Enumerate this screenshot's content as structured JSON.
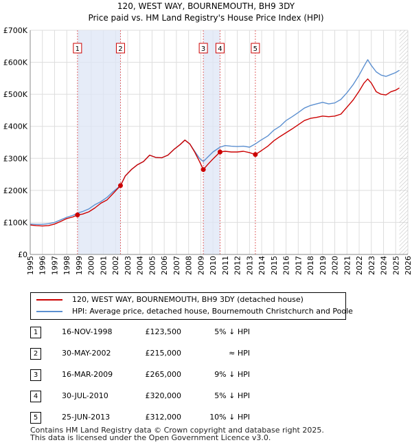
{
  "chart_data": {
    "type": "line",
    "title": "120, WEST WAY, BOURNEMOUTH, BH9 3DY",
    "subtitle": "Price paid vs. HM Land Registry's House Price Index (HPI)",
    "xlabel": "",
    "ylabel": "",
    "xlim": [
      1995,
      2026
    ],
    "ylim": [
      0,
      700000
    ],
    "x_ticks": [
      "1995",
      "1996",
      "1997",
      "1998",
      "1999",
      "2000",
      "2001",
      "2002",
      "2003",
      "2004",
      "2005",
      "2006",
      "2007",
      "2008",
      "2009",
      "2010",
      "2011",
      "2012",
      "2013",
      "2014",
      "2015",
      "2016",
      "2017",
      "2018",
      "2019",
      "2020",
      "2021",
      "2022",
      "2023",
      "2024",
      "2025",
      "2026"
    ],
    "y_ticks": [
      {
        "value": 0,
        "label": "£0"
      },
      {
        "value": 100000,
        "label": "£100K"
      },
      {
        "value": 200000,
        "label": "£200K"
      },
      {
        "value": 300000,
        "label": "£300K"
      },
      {
        "value": 400000,
        "label": "£400K"
      },
      {
        "value": 500000,
        "label": "£500K"
      },
      {
        "value": 600000,
        "label": "£600K"
      },
      {
        "value": 700000,
        "label": "£700K"
      }
    ],
    "grid": true,
    "series": [
      {
        "name": "120, WEST WAY, BOURNEMOUTH, BH9 3DY (detached house)",
        "color": "#cc0000",
        "points": [
          [
            1995,
            92000
          ],
          [
            1995.5,
            90000
          ],
          [
            1996,
            89000
          ],
          [
            1996.5,
            90000
          ],
          [
            1997,
            95000
          ],
          [
            1997.5,
            103000
          ],
          [
            1998,
            112000
          ],
          [
            1998.5,
            117000
          ],
          [
            1998.88,
            123500
          ],
          [
            1999.3,
            126000
          ],
          [
            1999.8,
            133000
          ],
          [
            2000.3,
            145000
          ],
          [
            2000.8,
            160000
          ],
          [
            2001.3,
            170000
          ],
          [
            2001.8,
            190000
          ],
          [
            2002.41,
            215000
          ],
          [
            2002.8,
            245000
          ],
          [
            2003.3,
            265000
          ],
          [
            2003.8,
            280000
          ],
          [
            2004.3,
            290000
          ],
          [
            2004.8,
            310000
          ],
          [
            2005.3,
            303000
          ],
          [
            2005.8,
            302000
          ],
          [
            2006.3,
            310000
          ],
          [
            2006.8,
            328000
          ],
          [
            2007.3,
            343000
          ],
          [
            2007.7,
            357000
          ],
          [
            2008.1,
            345000
          ],
          [
            2008.5,
            320000
          ],
          [
            2008.9,
            290000
          ],
          [
            2009.21,
            265000
          ],
          [
            2009.6,
            282000
          ],
          [
            2010.0,
            298000
          ],
          [
            2010.58,
            320000
          ],
          [
            2011,
            322000
          ],
          [
            2011.5,
            320000
          ],
          [
            2012,
            320000
          ],
          [
            2012.5,
            322000
          ],
          [
            2013,
            318000
          ],
          [
            2013.48,
            312000
          ],
          [
            2013.9,
            322000
          ],
          [
            2014.5,
            338000
          ],
          [
            2015,
            355000
          ],
          [
            2015.5,
            368000
          ],
          [
            2016,
            380000
          ],
          [
            2016.5,
            392000
          ],
          [
            2017,
            405000
          ],
          [
            2017.5,
            418000
          ],
          [
            2018,
            425000
          ],
          [
            2018.5,
            428000
          ],
          [
            2019,
            432000
          ],
          [
            2019.5,
            430000
          ],
          [
            2020,
            432000
          ],
          [
            2020.5,
            438000
          ],
          [
            2021,
            460000
          ],
          [
            2021.5,
            482000
          ],
          [
            2022,
            510000
          ],
          [
            2022.4,
            535000
          ],
          [
            2022.7,
            548000
          ],
          [
            2023,
            535000
          ],
          [
            2023.4,
            508000
          ],
          [
            2023.8,
            500000
          ],
          [
            2024.2,
            498000
          ],
          [
            2024.6,
            508000
          ],
          [
            2025,
            513000
          ],
          [
            2025.3,
            520000
          ]
        ]
      },
      {
        "name": "HPI: Average price, detached house, Bournemouth Christchurch and Poole",
        "color": "#5b8fd0",
        "points": [
          [
            1995,
            95000
          ],
          [
            1995.5,
            94000
          ],
          [
            1996,
            94000
          ],
          [
            1996.5,
            96000
          ],
          [
            1997,
            100000
          ],
          [
            1997.5,
            108000
          ],
          [
            1998,
            116000
          ],
          [
            1998.5,
            122000
          ],
          [
            1998.88,
            129000
          ],
          [
            1999.3,
            134000
          ],
          [
            1999.8,
            142000
          ],
          [
            2000.3,
            155000
          ],
          [
            2000.8,
            165000
          ],
          [
            2001.3,
            178000
          ],
          [
            2001.8,
            196000
          ],
          [
            2002.41,
            215000
          ],
          [
            2002.8,
            245000
          ],
          [
            2003.3,
            265000
          ],
          [
            2003.8,
            280000
          ],
          [
            2004.3,
            290000
          ],
          [
            2004.8,
            310000
          ],
          [
            2005.3,
            303000
          ],
          [
            2005.8,
            302000
          ],
          [
            2006.3,
            310000
          ],
          [
            2006.8,
            328000
          ],
          [
            2007.3,
            343000
          ],
          [
            2007.7,
            357000
          ],
          [
            2008.1,
            345000
          ],
          [
            2008.5,
            322000
          ],
          [
            2008.9,
            300000
          ],
          [
            2009.21,
            290000
          ],
          [
            2009.6,
            305000
          ],
          [
            2010.0,
            320000
          ],
          [
            2010.58,
            335000
          ],
          [
            2011,
            340000
          ],
          [
            2011.5,
            338000
          ],
          [
            2012,
            337000
          ],
          [
            2012.5,
            338000
          ],
          [
            2013,
            335000
          ],
          [
            2013.48,
            345000
          ],
          [
            2013.9,
            356000
          ],
          [
            2014.5,
            370000
          ],
          [
            2015,
            388000
          ],
          [
            2015.5,
            400000
          ],
          [
            2016,
            418000
          ],
          [
            2016.5,
            430000
          ],
          [
            2017,
            443000
          ],
          [
            2017.5,
            457000
          ],
          [
            2018,
            465000
          ],
          [
            2018.5,
            470000
          ],
          [
            2019,
            475000
          ],
          [
            2019.5,
            470000
          ],
          [
            2020,
            473000
          ],
          [
            2020.5,
            484000
          ],
          [
            2021,
            505000
          ],
          [
            2021.5,
            530000
          ],
          [
            2022,
            560000
          ],
          [
            2022.4,
            588000
          ],
          [
            2022.7,
            608000
          ],
          [
            2023,
            590000
          ],
          [
            2023.4,
            570000
          ],
          [
            2023.8,
            560000
          ],
          [
            2024.2,
            556000
          ],
          [
            2024.6,
            562000
          ],
          [
            2025,
            568000
          ],
          [
            2025.3,
            575000
          ]
        ]
      }
    ],
    "shaded_ranges": [
      [
        1998.88,
        2002.41
      ],
      [
        2009.21,
        2010.58
      ]
    ],
    "hatched_from": 2025.3,
    "markers": [
      {
        "label": "1",
        "x": 1998.88,
        "y": 123500
      },
      {
        "label": "2",
        "x": 2002.41,
        "y": 215000
      },
      {
        "label": "3",
        "x": 2009.21,
        "y": 265000
      },
      {
        "label": "4",
        "x": 2010.58,
        "y": 320000
      },
      {
        "label": "5",
        "x": 2013.48,
        "y": 312000
      }
    ]
  },
  "legend": {
    "property_label": "120, WEST WAY, BOURNEMOUTH, BH9 3DY (detached house)",
    "hpi_label": "HPI: Average price, detached house, Bournemouth Christchurch and Poole",
    "property_color": "#cc0000",
    "hpi_color": "#5b8fd0"
  },
  "sales": [
    {
      "num": "1",
      "date": "16-NOV-1998",
      "price": "£123,500",
      "hpi": "5% ↓ HPI"
    },
    {
      "num": "2",
      "date": "30-MAY-2002",
      "price": "£215,000",
      "hpi": "≈ HPI"
    },
    {
      "num": "3",
      "date": "16-MAR-2009",
      "price": "£265,000",
      "hpi": "9% ↓ HPI"
    },
    {
      "num": "4",
      "date": "30-JUL-2010",
      "price": "£320,000",
      "hpi": "5% ↓ HPI"
    },
    {
      "num": "5",
      "date": "25-JUN-2013",
      "price": "£312,000",
      "hpi": "10% ↓ HPI"
    }
  ],
  "footer": {
    "line1": "Contains HM Land Registry data © Crown copyright and database right 2025.",
    "line2": "This data is licensed under the Open Government Licence v3.0."
  }
}
